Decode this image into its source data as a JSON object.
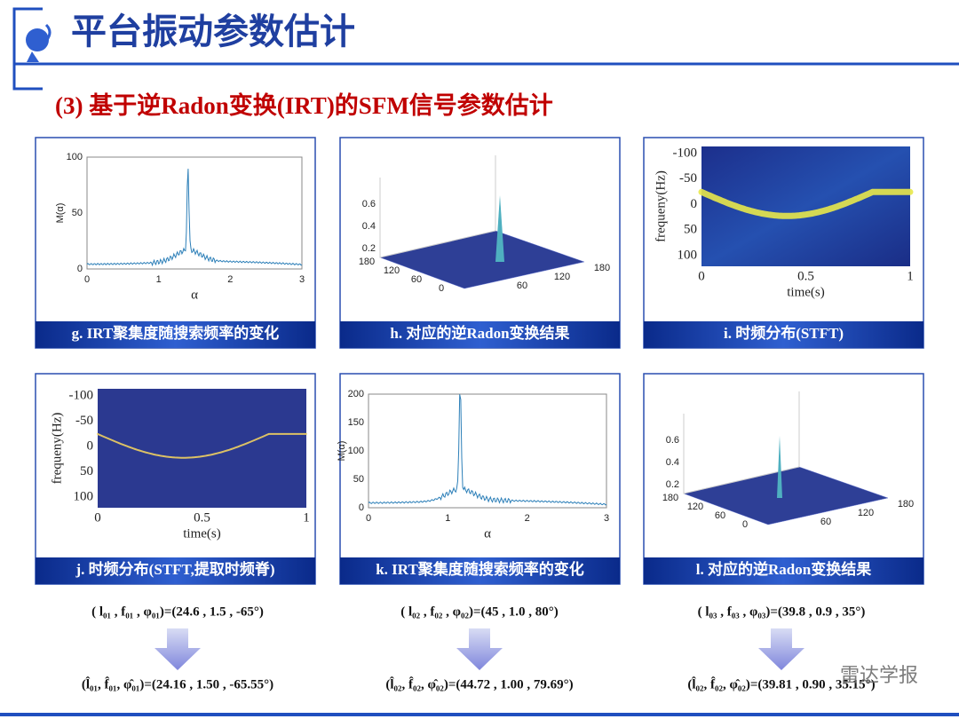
{
  "header": {
    "title": "平台振动参数估计",
    "subtitle": "(3) 基于逆Radon变换(IRT)的SFM信号参数估计"
  },
  "panels": [
    {
      "kind": "line",
      "caption": "g. IRT聚集度随搜索频率的变化",
      "ylabel": "M(α)",
      "xlabel": "α",
      "xticks": [
        0,
        1,
        2,
        3
      ],
      "yticks": [
        0,
        50,
        100
      ]
    },
    {
      "kind": "surface",
      "caption": "h. 对应的逆Radon变换结果",
      "zticks": [
        0.2,
        0.4,
        0.6
      ],
      "leftticks": [
        180,
        120,
        60,
        0
      ],
      "rightticks": [
        60,
        120,
        180
      ]
    },
    {
      "kind": "image",
      "caption": "i. 时频分布(STFT)",
      "ylabel": "frequeny(Hz)",
      "xlabel": "time(s)",
      "xticks": [
        0,
        0.5,
        1
      ],
      "yticks": [
        -100,
        -50,
        0,
        50,
        100
      ]
    },
    {
      "kind": "image",
      "caption": "j. 时频分布(STFT,提取时频脊)",
      "ylabel": "frequeny(Hz)",
      "xlabel": "time(s)",
      "xticks": [
        0,
        0.5,
        1
      ],
      "yticks": [
        -100,
        -50,
        0,
        50,
        100
      ]
    },
    {
      "kind": "line",
      "caption": "k. IRT聚集度随搜索频率的变化",
      "ylabel": "M(α)",
      "xlabel": "α",
      "xticks": [
        0,
        1,
        2,
        3
      ],
      "yticks": [
        0,
        50,
        100,
        150,
        200
      ]
    },
    {
      "kind": "surface",
      "caption": "l. 对应的逆Radon变换结果",
      "zticks": [
        0.2,
        0.4,
        0.6
      ],
      "leftticks": [
        180,
        120,
        60,
        0
      ],
      "rightticks": [
        60,
        120,
        180
      ]
    }
  ],
  "results": [
    {
      "true": "( l₀₁ , f₀₁ , φ₀₁)=(24.6 , 1.5 , -65°)",
      "estimated": "(l̂₀₁, f̂₀₁, φ̂₀₁)=(24.16 , 1.50 , -65.55°)"
    },
    {
      "true": "( l₀₂ , f₀₂ , φ₀₂)=(45 , 1.0 , 80°)",
      "estimated": "(l̂₀₂, f̂₀₂, φ̂₀₂)=(44.72 , 1.00 , 79.69°)"
    },
    {
      "true": "( l₀₃ , f₀₃ , φ₀₃)=(39.8 , 0.9 , 35°)",
      "estimated": "(l̂₀₂, f̂₀₂, φ̂₀₂)=(39.81 , 0.90 , 35.15°)"
    }
  ],
  "watermark": "雷达学报"
}
